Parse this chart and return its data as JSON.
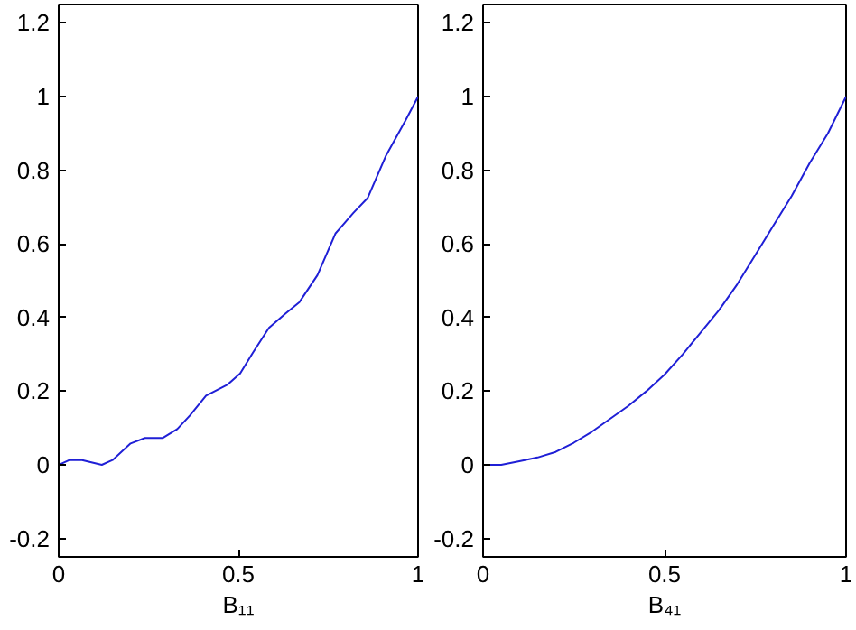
{
  "chart_data": [
    {
      "type": "line",
      "xlabel": "B₁₁",
      "xlim": [
        0,
        1
      ],
      "ylim": [
        -0.25,
        1.25
      ],
      "xticks": [
        0,
        0.5,
        1
      ],
      "yticks": [
        -0.2,
        0,
        0.2,
        0.4,
        0.6,
        0.8,
        1,
        1.2
      ],
      "grid": false,
      "series": [
        {
          "color": "#1f1fd6",
          "x": [
            0,
            0.03,
            0.065,
            0.12,
            0.15,
            0.2,
            0.24,
            0.29,
            0.33,
            0.365,
            0.41,
            0.47,
            0.505,
            0.54,
            0.585,
            0.63,
            0.67,
            0.72,
            0.77,
            0.82,
            0.86,
            0.91,
            0.965,
            1
          ],
          "values": [
            0,
            0.013,
            0.013,
            0,
            0.013,
            0.058,
            0.073,
            0.073,
            0.097,
            0.134,
            0.188,
            0.218,
            0.248,
            0.304,
            0.372,
            0.41,
            0.442,
            0.515,
            0.628,
            0.684,
            0.725,
            0.838,
            0.935,
            1
          ]
        }
      ]
    },
    {
      "type": "line",
      "xlabel": "B₄₁",
      "xlim": [
        0,
        1
      ],
      "ylim": [
        -0.25,
        1.25
      ],
      "xticks": [
        0,
        0.5,
        1
      ],
      "yticks": [
        -0.2,
        0,
        0.2,
        0.4,
        0.6,
        0.8,
        1,
        1.2
      ],
      "grid": false,
      "series": [
        {
          "color": "#1f1fd6",
          "x": [
            0,
            0.05,
            0.1,
            0.15,
            0.2,
            0.25,
            0.3,
            0.35,
            0.4,
            0.45,
            0.5,
            0.55,
            0.6,
            0.65,
            0.7,
            0.75,
            0.8,
            0.85,
            0.9,
            0.95,
            1
          ],
          "values": [
            0,
            0,
            0.01,
            0.02,
            0.035,
            0.06,
            0.09,
            0.125,
            0.16,
            0.2,
            0.245,
            0.3,
            0.36,
            0.42,
            0.49,
            0.57,
            0.65,
            0.73,
            0.82,
            0.9,
            1
          ]
        }
      ]
    }
  ]
}
